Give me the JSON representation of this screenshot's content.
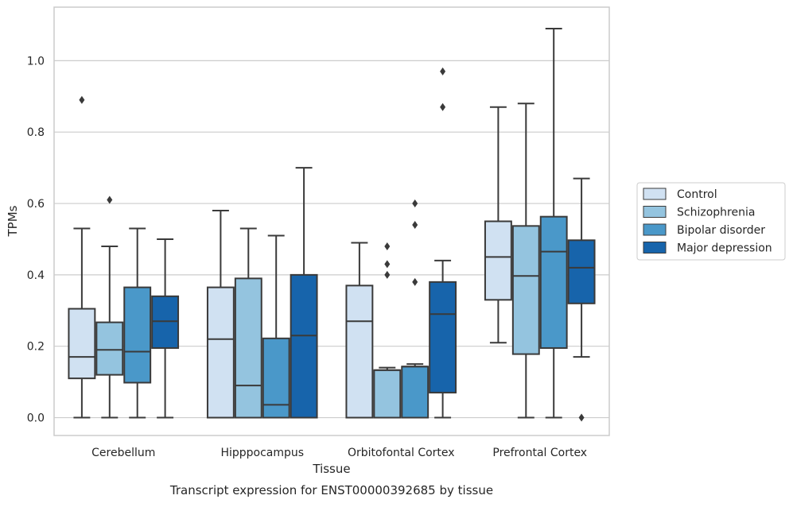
{
  "chart_data": {
    "type": "boxplot",
    "title": "",
    "caption": "Transcript expression for ENST00000392685 by tissue",
    "xlabel": "Tissue",
    "ylabel": "TPMs",
    "ylim": [
      -0.05,
      1.15
    ],
    "yticks": [
      0.0,
      0.2,
      0.4,
      0.6,
      0.8,
      1.0
    ],
    "ytick_labels": [
      "0.0",
      "0.2",
      "0.4",
      "0.6",
      "0.8",
      "1.0"
    ],
    "grid": true,
    "legend_position": "right",
    "categories": [
      "Cerebellum",
      "Hipppocampus",
      "Orbitofontal Cortex",
      "Prefrontal Cortex"
    ],
    "series": [
      {
        "name": "Control",
        "color": "#d0e1f2",
        "boxes": [
          {
            "whislo": 0.0,
            "q1": 0.11,
            "med": 0.17,
            "q3": 0.305,
            "whishi": 0.53,
            "fliers": [
              0.89
            ]
          },
          {
            "whislo": 0.0,
            "q1": 0.0,
            "med": 0.22,
            "q3": 0.365,
            "whishi": 0.58,
            "fliers": []
          },
          {
            "whislo": 0.0,
            "q1": 0.0,
            "med": 0.27,
            "q3": 0.37,
            "whishi": 0.49,
            "fliers": []
          },
          {
            "whislo": 0.21,
            "q1": 0.33,
            "med": 0.45,
            "q3": 0.55,
            "whishi": 0.87,
            "fliers": []
          }
        ]
      },
      {
        "name": "Schizophrenia",
        "color": "#94c4df",
        "boxes": [
          {
            "whislo": 0.0,
            "q1": 0.12,
            "med": 0.19,
            "q3": 0.267,
            "whishi": 0.48,
            "fliers": [
              0.61
            ]
          },
          {
            "whislo": 0.0,
            "q1": 0.0,
            "med": 0.09,
            "q3": 0.39,
            "whishi": 0.53,
            "fliers": []
          },
          {
            "whislo": 0.0,
            "q1": 0.0,
            "med": 0.133,
            "q3": 0.133,
            "whishi": 0.14,
            "fliers": [
              0.4,
              0.43,
              0.48
            ]
          },
          {
            "whislo": 0.0,
            "q1": 0.178,
            "med": 0.397,
            "q3": 0.537,
            "whishi": 0.88,
            "fliers": []
          }
        ]
      },
      {
        "name": "Bipolar disorder",
        "color": "#4a98c9",
        "boxes": [
          {
            "whislo": 0.0,
            "q1": 0.098,
            "med": 0.185,
            "q3": 0.365,
            "whishi": 0.53,
            "fliers": []
          },
          {
            "whislo": 0.0,
            "q1": 0.0,
            "med": 0.036,
            "q3": 0.222,
            "whishi": 0.51,
            "fliers": []
          },
          {
            "whislo": 0.0,
            "q1": 0.0,
            "med": 0.143,
            "q3": 0.143,
            "whishi": 0.15,
            "fliers": [
              0.38,
              0.54,
              0.6
            ]
          },
          {
            "whislo": 0.0,
            "q1": 0.195,
            "med": 0.465,
            "q3": 0.563,
            "whishi": 1.09,
            "fliers": []
          }
        ]
      },
      {
        "name": "Major depression",
        "color": "#1764ab",
        "boxes": [
          {
            "whislo": 0.0,
            "q1": 0.195,
            "med": 0.27,
            "q3": 0.34,
            "whishi": 0.5,
            "fliers": []
          },
          {
            "whislo": 0.0,
            "q1": 0.0,
            "med": 0.23,
            "q3": 0.4,
            "whishi": 0.7,
            "fliers": []
          },
          {
            "whislo": 0.0,
            "q1": 0.07,
            "med": 0.29,
            "q3": 0.38,
            "whishi": 0.44,
            "fliers": [
              0.87,
              0.97
            ]
          },
          {
            "whislo": 0.17,
            "q1": 0.32,
            "med": 0.42,
            "q3": 0.497,
            "whishi": 0.67,
            "fliers": [
              0.0
            ]
          }
        ]
      }
    ]
  }
}
